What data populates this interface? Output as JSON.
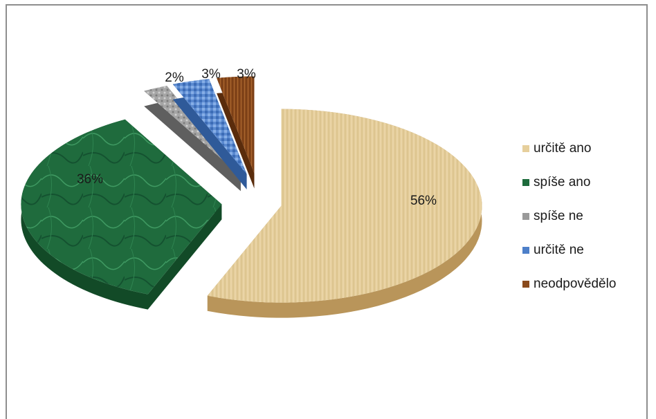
{
  "chart_data": {
    "type": "pie",
    "title": "",
    "categories": [
      "určitě ano",
      "spíše ano",
      "spíše ne",
      "určitě ne",
      "neodpovědělo"
    ],
    "values": [
      56,
      36,
      2,
      3,
      3
    ],
    "data_labels": [
      "56%",
      "36%",
      "2%",
      "3%",
      "3%"
    ],
    "colors": [
      "#e6cf9c",
      "#1d6b3c",
      "#9a9a9a",
      "#4d7fc9",
      "#8a4a1c"
    ],
    "style": "3d-exploded",
    "legend_position": "right"
  }
}
